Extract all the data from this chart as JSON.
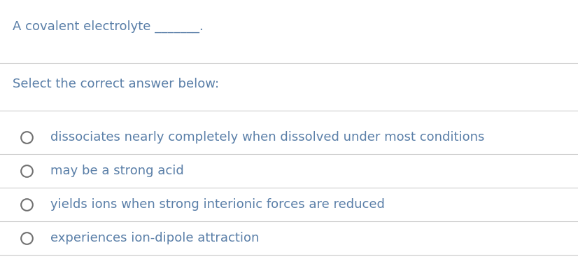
{
  "background_color": "#ffffff",
  "text_color": "#5a7fa8",
  "circle_color": "#707070",
  "line_color": "#cccccc",
  "question_text": "A covalent electrolyte _______.",
  "instruction_text": "Select the correct answer below:",
  "options": [
    "dissociates nearly completely when dissolved under most conditions",
    "may be a strong acid",
    "yields ions when strong interionic forces are reduced",
    "experiences ion-dipole attraction"
  ],
  "question_fontsize": 13.0,
  "instruction_fontsize": 13.0,
  "option_fontsize": 13.0,
  "fig_width": 8.26,
  "fig_height": 3.87,
  "dpi": 100
}
